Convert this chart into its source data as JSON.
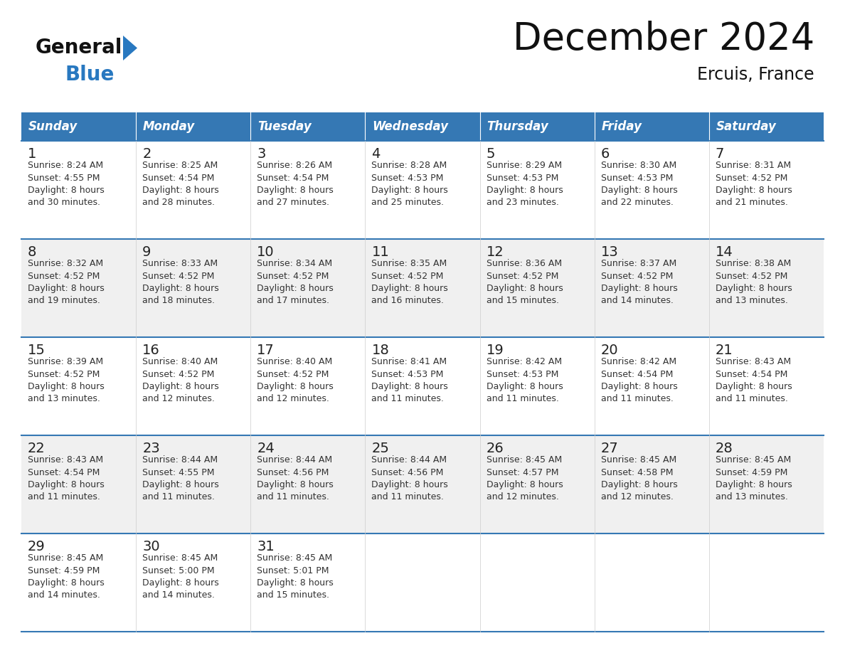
{
  "title": "December 2024",
  "subtitle": "Ercuis, France",
  "days_of_week": [
    "Sunday",
    "Monday",
    "Tuesday",
    "Wednesday",
    "Thursday",
    "Friday",
    "Saturday"
  ],
  "header_bg_color": "#3578B4",
  "header_text_color": "#FFFFFF",
  "row_bg_white": "#FFFFFF",
  "row_bg_gray": "#F0F0F0",
  "grid_line_color": "#3578B4",
  "title_color": "#111111",
  "subtitle_color": "#111111",
  "day_number_color": "#222222",
  "cell_text_color": "#333333",
  "logo_general_color": "#111111",
  "logo_blue_color": "#2878C0",
  "calendar_data": [
    [
      {
        "day": 1,
        "sunrise": "8:24 AM",
        "sunset": "4:55 PM",
        "daylight": "8 hours and 30 minutes."
      },
      {
        "day": 2,
        "sunrise": "8:25 AM",
        "sunset": "4:54 PM",
        "daylight": "8 hours and 28 minutes."
      },
      {
        "day": 3,
        "sunrise": "8:26 AM",
        "sunset": "4:54 PM",
        "daylight": "8 hours and 27 minutes."
      },
      {
        "day": 4,
        "sunrise": "8:28 AM",
        "sunset": "4:53 PM",
        "daylight": "8 hours and 25 minutes."
      },
      {
        "day": 5,
        "sunrise": "8:29 AM",
        "sunset": "4:53 PM",
        "daylight": "8 hours and 23 minutes."
      },
      {
        "day": 6,
        "sunrise": "8:30 AM",
        "sunset": "4:53 PM",
        "daylight": "8 hours and 22 minutes."
      },
      {
        "day": 7,
        "sunrise": "8:31 AM",
        "sunset": "4:52 PM",
        "daylight": "8 hours and 21 minutes."
      }
    ],
    [
      {
        "day": 8,
        "sunrise": "8:32 AM",
        "sunset": "4:52 PM",
        "daylight": "8 hours and 19 minutes."
      },
      {
        "day": 9,
        "sunrise": "8:33 AM",
        "sunset": "4:52 PM",
        "daylight": "8 hours and 18 minutes."
      },
      {
        "day": 10,
        "sunrise": "8:34 AM",
        "sunset": "4:52 PM",
        "daylight": "8 hours and 17 minutes."
      },
      {
        "day": 11,
        "sunrise": "8:35 AM",
        "sunset": "4:52 PM",
        "daylight": "8 hours and 16 minutes."
      },
      {
        "day": 12,
        "sunrise": "8:36 AM",
        "sunset": "4:52 PM",
        "daylight": "8 hours and 15 minutes."
      },
      {
        "day": 13,
        "sunrise": "8:37 AM",
        "sunset": "4:52 PM",
        "daylight": "8 hours and 14 minutes."
      },
      {
        "day": 14,
        "sunrise": "8:38 AM",
        "sunset": "4:52 PM",
        "daylight": "8 hours and 13 minutes."
      }
    ],
    [
      {
        "day": 15,
        "sunrise": "8:39 AM",
        "sunset": "4:52 PM",
        "daylight": "8 hours and 13 minutes."
      },
      {
        "day": 16,
        "sunrise": "8:40 AM",
        "sunset": "4:52 PM",
        "daylight": "8 hours and 12 minutes."
      },
      {
        "day": 17,
        "sunrise": "8:40 AM",
        "sunset": "4:52 PM",
        "daylight": "8 hours and 12 minutes."
      },
      {
        "day": 18,
        "sunrise": "8:41 AM",
        "sunset": "4:53 PM",
        "daylight": "8 hours and 11 minutes."
      },
      {
        "day": 19,
        "sunrise": "8:42 AM",
        "sunset": "4:53 PM",
        "daylight": "8 hours and 11 minutes."
      },
      {
        "day": 20,
        "sunrise": "8:42 AM",
        "sunset": "4:54 PM",
        "daylight": "8 hours and 11 minutes."
      },
      {
        "day": 21,
        "sunrise": "8:43 AM",
        "sunset": "4:54 PM",
        "daylight": "8 hours and 11 minutes."
      }
    ],
    [
      {
        "day": 22,
        "sunrise": "8:43 AM",
        "sunset": "4:54 PM",
        "daylight": "8 hours and 11 minutes."
      },
      {
        "day": 23,
        "sunrise": "8:44 AM",
        "sunset": "4:55 PM",
        "daylight": "8 hours and 11 minutes."
      },
      {
        "day": 24,
        "sunrise": "8:44 AM",
        "sunset": "4:56 PM",
        "daylight": "8 hours and 11 minutes."
      },
      {
        "day": 25,
        "sunrise": "8:44 AM",
        "sunset": "4:56 PM",
        "daylight": "8 hours and 11 minutes."
      },
      {
        "day": 26,
        "sunrise": "8:45 AM",
        "sunset": "4:57 PM",
        "daylight": "8 hours and 12 minutes."
      },
      {
        "day": 27,
        "sunrise": "8:45 AM",
        "sunset": "4:58 PM",
        "daylight": "8 hours and 12 minutes."
      },
      {
        "day": 28,
        "sunrise": "8:45 AM",
        "sunset": "4:59 PM",
        "daylight": "8 hours and 13 minutes."
      }
    ],
    [
      {
        "day": 29,
        "sunrise": "8:45 AM",
        "sunset": "4:59 PM",
        "daylight": "8 hours and 14 minutes."
      },
      {
        "day": 30,
        "sunrise": "8:45 AM",
        "sunset": "5:00 PM",
        "daylight": "8 hours and 14 minutes."
      },
      {
        "day": 31,
        "sunrise": "8:45 AM",
        "sunset": "5:01 PM",
        "daylight": "8 hours and 15 minutes."
      },
      null,
      null,
      null,
      null
    ]
  ]
}
